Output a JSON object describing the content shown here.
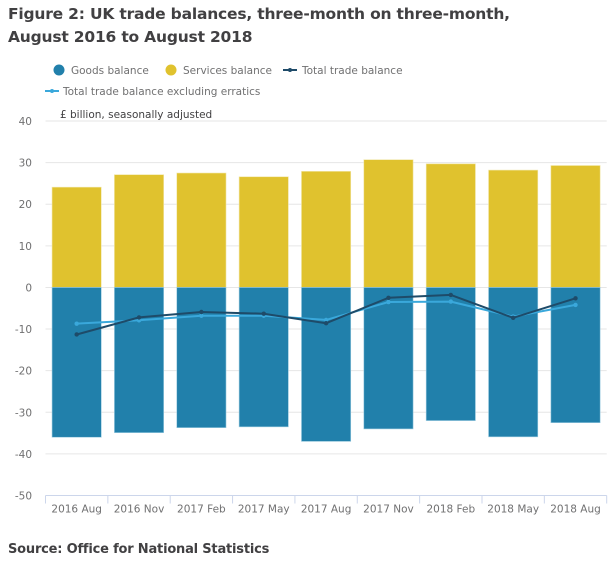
{
  "figure": {
    "title": "Figure 2: UK trade balances, three-month on three-month, August 2016 to August 2018",
    "title_line1": "Figure 2: UK trade balances, three-month on three-month,",
    "title_line2": "August 2016 to August 2018",
    "source": "Source: Office for National Statistics"
  },
  "colors": {
    "goods": "#2180AB",
    "services": "#E0C22E",
    "total": "#1E4B69",
    "total_excl": "#3AA8DB",
    "grid": "#E6E6E6",
    "axis": "#CCD6EB"
  },
  "chart_data": {
    "type": "bar",
    "stacked": true,
    "title": "Figure 2: UK trade balances, three-month on three-month, August 2016 to August 2018",
    "ylabel": "£ billion, seasonally adjusted",
    "xlabel": "",
    "ylim": [
      -50,
      40
    ],
    "yticks": [
      40,
      30,
      20,
      10,
      0,
      -10,
      -20,
      -30,
      -40,
      -50
    ],
    "grid": true,
    "legend_position": "top-left",
    "categories": [
      "2016 Aug",
      "2016 Nov",
      "2017 Feb",
      "2017 May",
      "2017 Aug",
      "2017 Nov",
      "2018 Feb",
      "2018 May",
      "2018 Aug"
    ],
    "series": [
      {
        "name": "Goods balance",
        "kind": "bar",
        "marker": "circle",
        "values": [
          -36.0,
          -34.9,
          -33.7,
          -33.5,
          -37.0,
          -34.0,
          -32.0,
          -35.9,
          -32.5
        ]
      },
      {
        "name": "Services balance",
        "kind": "bar",
        "marker": "circle",
        "values": [
          24.1,
          27.1,
          27.5,
          26.6,
          27.9,
          30.7,
          29.7,
          28.2,
          29.3
        ]
      },
      {
        "name": "Total trade balance",
        "kind": "line",
        "marker": "line-dot",
        "values": [
          -11.3,
          -7.2,
          -5.9,
          -6.3,
          -8.6,
          -2.5,
          -1.8,
          -7.3,
          -2.6
        ]
      },
      {
        "name": "Total trade balance excluding erratics",
        "kind": "line",
        "marker": "line-dot",
        "values": [
          -8.7,
          -7.9,
          -6.8,
          -6.8,
          -7.8,
          -3.5,
          -3.4,
          -7.0,
          -4.2
        ]
      }
    ]
  }
}
